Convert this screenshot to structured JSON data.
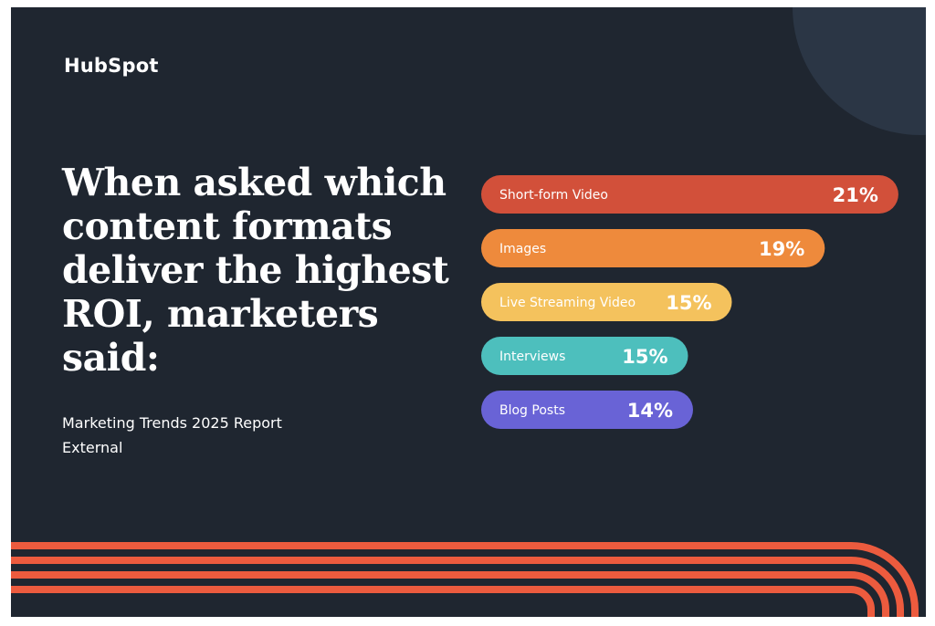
{
  "brand": {
    "logo_text": "HubSpot"
  },
  "headline": "When asked which content formats deliver the highest ROI, marketers said:",
  "source": {
    "line1": "Marketing Trends 2025 Report",
    "line2": "External"
  },
  "chart_data": {
    "type": "bar",
    "orientation": "horizontal",
    "categories": [
      "Short-form Video",
      "Images",
      "Live Streaming Video",
      "Interviews",
      "Blog Posts"
    ],
    "values": [
      21,
      19,
      15,
      15,
      14
    ],
    "value_labels": [
      "21%",
      "19%",
      "15%",
      "15%",
      "14%"
    ],
    "bar_colors": [
      "#d2503a",
      "#ee8a3c",
      "#f4c25d",
      "#4dbfbd",
      "#6963d6"
    ],
    "title": "",
    "xlabel": "",
    "ylabel": "",
    "grid": false,
    "legend": "none"
  },
  "colors": {
    "background": "#1f2630",
    "accent_circle": "#2b3645",
    "stripes": "#ec5b3e",
    "text": "#ffffff"
  }
}
